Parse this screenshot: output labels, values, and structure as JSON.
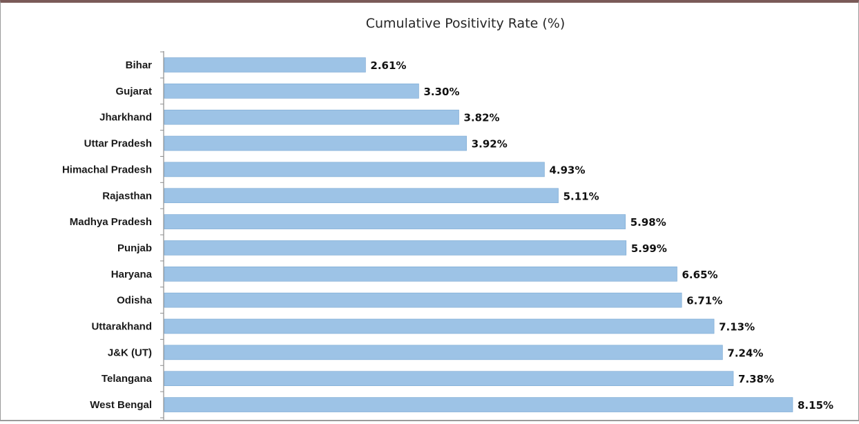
{
  "chart_data": {
    "type": "bar",
    "orientation": "horizontal",
    "title": "Cumulative Positivity Rate (%)",
    "xlabel": "",
    "ylabel": "",
    "categories": [
      "Bihar",
      "Gujarat",
      "Jharkhand",
      "Uttar Pradesh",
      "Himachal Pradesh",
      "Rajasthan",
      "Madhya Pradesh",
      "Punjab",
      "Haryana",
      "Odisha",
      "Uttarakhand",
      "J&K (UT)",
      "Telangana",
      "West Bengal"
    ],
    "values": [
      2.61,
      3.3,
      3.82,
      3.92,
      4.93,
      5.11,
      5.98,
      5.99,
      6.65,
      6.71,
      7.13,
      7.24,
      7.38,
      8.15
    ],
    "value_labels": [
      "2.61%",
      "3.30%",
      "3.82%",
      "3.92%",
      "4.93%",
      "5.11%",
      "5.98%",
      "5.99%",
      "6.65%",
      "6.71%",
      "7.13%",
      "7.24%",
      "7.38%",
      "8.15%"
    ],
    "xlim": [
      0,
      8.15
    ],
    "grid": false,
    "legend": "none",
    "bar_color": "#9dc3e6",
    "bar_edge_color": "#7aa8d2"
  }
}
